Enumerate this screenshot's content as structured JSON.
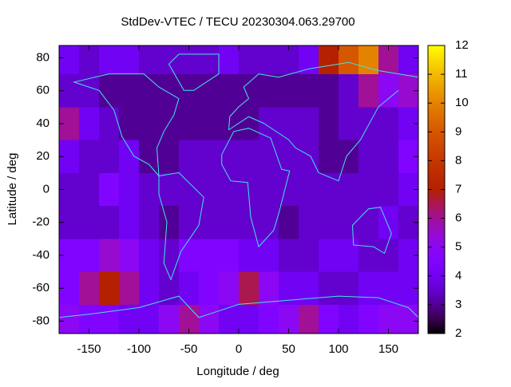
{
  "chart_data": {
    "type": "heatmap",
    "title": "StdDev-VTEC / TECU 20230304.063.29700",
    "x_label": "Longitude / deg",
    "y_label": "Latitude / deg",
    "x": [
      -170,
      -150,
      -130,
      -110,
      -90,
      -70,
      -50,
      -30,
      -10,
      10,
      30,
      50,
      70,
      90,
      110,
      130,
      150,
      170
    ],
    "y": [
      80,
      60,
      40,
      20,
      0,
      -20,
      -40,
      -60,
      -80
    ],
    "z": [
      [
        4,
        3.5,
        4,
        4,
        3.5,
        3.5,
        3.5,
        3.5,
        4,
        3.5,
        3.5,
        3.5,
        4,
        7,
        9,
        10,
        6,
        4
      ],
      [
        3.5,
        3.5,
        3,
        3,
        3,
        3,
        3,
        3,
        3,
        3,
        3,
        3,
        3,
        3,
        3.5,
        6,
        5,
        5.5
      ],
      [
        6,
        4,
        3.5,
        3,
        3,
        3,
        3,
        3,
        3,
        3,
        3.5,
        3.5,
        3.5,
        3,
        3.5,
        3.5,
        3.5,
        4
      ],
      [
        4,
        3.5,
        3.5,
        4,
        3,
        3,
        3.5,
        3.5,
        3.5,
        3.5,
        3.5,
        3.5,
        3.5,
        3,
        3,
        3.5,
        3.5,
        4.5
      ],
      [
        3.5,
        3.5,
        4.5,
        4,
        3.5,
        3.5,
        3.5,
        3.5,
        3.5,
        3.5,
        3.5,
        3.5,
        3.5,
        3.5,
        3.5,
        3.5,
        3.5,
        4
      ],
      [
        3.5,
        3.5,
        3.5,
        4,
        3.5,
        3,
        3.5,
        3.5,
        3.5,
        3.5,
        3.5,
        3,
        3.5,
        3.5,
        3.5,
        3.5,
        4,
        3.5
      ],
      [
        4.5,
        4.5,
        5.5,
        5,
        4,
        3.5,
        4.5,
        4.5,
        4.5,
        4,
        4,
        3.5,
        3.5,
        4,
        4,
        3.5,
        3.5,
        4
      ],
      [
        4.5,
        6,
        7,
        6,
        4,
        3.5,
        4,
        4.5,
        5,
        6.5,
        5,
        4,
        4,
        3.5,
        3.5,
        4,
        4,
        4
      ],
      [
        5,
        4.5,
        4.5,
        4,
        4,
        5,
        6,
        5,
        4,
        4,
        4.5,
        5,
        6,
        4.5,
        4,
        4.5,
        5,
        5
      ]
    ],
    "xlim": [
      -180,
      180
    ],
    "ylim": [
      -87.5,
      87.5
    ],
    "zlim": [
      2,
      12
    ],
    "xticks": [
      -150,
      -100,
      -50,
      0,
      50,
      100,
      150
    ],
    "yticks": [
      -80,
      -60,
      -40,
      -20,
      0,
      20,
      40,
      60,
      80
    ],
    "zticks": [
      2,
      3,
      4,
      5,
      6,
      7,
      8,
      9,
      10,
      11,
      12
    ]
  }
}
